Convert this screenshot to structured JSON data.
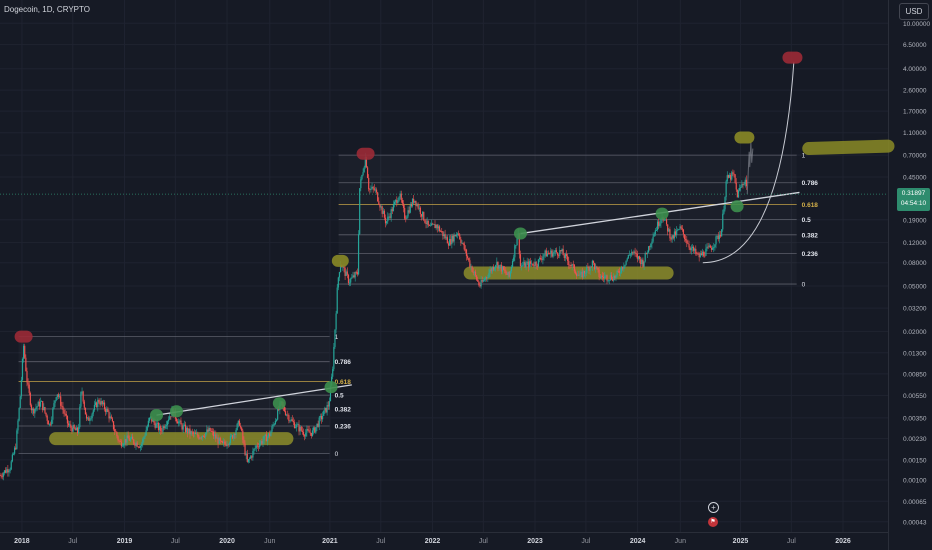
{
  "header": {
    "title": "Dogecoin, 1D, CRYPTO",
    "currency_button": "USD"
  },
  "price_tag": {
    "price": "0.31897",
    "countdown": "04:54:10"
  },
  "colors": {
    "background": "#161a25",
    "up": "#26a69a",
    "down": "#ef5350",
    "highlight_yellow": "#8a8a26",
    "highlight_green": "#3d8f4e",
    "highlight_red": "#9b2a36",
    "fib_line": "#787b86",
    "fib_618": "#d4b04a",
    "trendline": "#d1d4dc"
  },
  "icons": {
    "add": "plus-circle-icon",
    "flag": "flag-icon"
  },
  "chart_data": {
    "type": "candlestick",
    "title": "Dogecoin, 1D, CRYPTO",
    "ylabel": "USD",
    "yscale": "log",
    "ylim": [
      0.00035,
      16
    ],
    "xlim": [
      "2017-10-15",
      "2026-06-10"
    ],
    "y_ticks": [
      "10.00000",
      "6.50000",
      "4.00000",
      "2.60000",
      "1.70000",
      "1.10000",
      "0.70000",
      "0.45000",
      "0.19000",
      "0.12000",
      "0.08000",
      "0.05000",
      "0.03200",
      "0.02000",
      "0.01300",
      "0.00850",
      "0.00550",
      "0.00350",
      "0.00230",
      "0.00150",
      "0.00100",
      "0.00065",
      "0.00043"
    ],
    "x_ticks": [
      {
        "date": "2018-01-01",
        "label": "2018",
        "bold": true
      },
      {
        "date": "2018-07-01",
        "label": "Jul",
        "bold": false
      },
      {
        "date": "2019-01-01",
        "label": "2019",
        "bold": true
      },
      {
        "date": "2019-07-01",
        "label": "Jul",
        "bold": false
      },
      {
        "date": "2020-01-01",
        "label": "2020",
        "bold": true
      },
      {
        "date": "2020-06-01",
        "label": "Jun",
        "bold": false
      },
      {
        "date": "2021-01-01",
        "label": "2021",
        "bold": true
      },
      {
        "date": "2021-07-01",
        "label": "Jul",
        "bold": false
      },
      {
        "date": "2022-01-01",
        "label": "2022",
        "bold": true
      },
      {
        "date": "2022-07-01",
        "label": "Jul",
        "bold": false
      },
      {
        "date": "2023-01-01",
        "label": "2023",
        "bold": true
      },
      {
        "date": "2023-07-01",
        "label": "Jul",
        "bold": false
      },
      {
        "date": "2024-01-01",
        "label": "2024",
        "bold": true
      },
      {
        "date": "2024-06-01",
        "label": "Jun",
        "bold": false
      },
      {
        "date": "2025-01-01",
        "label": "2025",
        "bold": true
      },
      {
        "date": "2025-07-01",
        "label": "Jul",
        "bold": false
      },
      {
        "date": "2026-01-01",
        "label": "2026",
        "bold": true
      }
    ],
    "price_path": [
      [
        "2017-10-15",
        0.0011
      ],
      [
        "2017-11-20",
        0.0013
      ],
      [
        "2017-12-10",
        0.002
      ],
      [
        "2017-12-25",
        0.005
      ],
      [
        "2018-01-07",
        0.015
      ],
      [
        "2018-01-20",
        0.007
      ],
      [
        "2018-02-06",
        0.004
      ],
      [
        "2018-03-10",
        0.0048
      ],
      [
        "2018-04-10",
        0.003
      ],
      [
        "2018-05-05",
        0.006
      ],
      [
        "2018-06-15",
        0.003
      ],
      [
        "2018-07-20",
        0.0026
      ],
      [
        "2018-08-01",
        0.0065
      ],
      [
        "2018-08-20",
        0.0032
      ],
      [
        "2018-10-01",
        0.005
      ],
      [
        "2018-11-01",
        0.004
      ],
      [
        "2018-12-15",
        0.0021
      ],
      [
        "2019-01-15",
        0.0023
      ],
      [
        "2019-03-01",
        0.002
      ],
      [
        "2019-04-02",
        0.0035
      ],
      [
        "2019-05-10",
        0.0027
      ],
      [
        "2019-06-20",
        0.004
      ],
      [
        "2019-07-20",
        0.003
      ],
      [
        "2019-08-20",
        0.0026
      ],
      [
        "2019-09-20",
        0.0024
      ],
      [
        "2019-11-01",
        0.0027
      ],
      [
        "2019-12-15",
        0.002
      ],
      [
        "2020-01-15",
        0.0023
      ],
      [
        "2020-02-14",
        0.0032
      ],
      [
        "2020-03-13",
        0.0014
      ],
      [
        "2020-04-15",
        0.002
      ],
      [
        "2020-06-01",
        0.0025
      ],
      [
        "2020-07-10",
        0.0046
      ],
      [
        "2020-08-20",
        0.0032
      ],
      [
        "2020-09-30",
        0.0026
      ],
      [
        "2020-11-01",
        0.0026
      ],
      [
        "2020-12-01",
        0.0035
      ],
      [
        "2020-12-28",
        0.0046
      ],
      [
        "2021-01-10",
        0.009
      ],
      [
        "2021-01-29",
        0.055
      ],
      [
        "2021-02-07",
        0.08
      ],
      [
        "2021-03-10",
        0.055
      ],
      [
        "2021-04-10",
        0.065
      ],
      [
        "2021-04-16",
        0.35
      ],
      [
        "2021-05-08",
        0.69
      ],
      [
        "2021-05-20",
        0.35
      ],
      [
        "2021-06-10",
        0.35
      ],
      [
        "2021-07-20",
        0.18
      ],
      [
        "2021-09-05",
        0.32
      ],
      [
        "2021-09-25",
        0.2
      ],
      [
        "2021-10-28",
        0.29
      ],
      [
        "2021-12-20",
        0.16
      ],
      [
        "2022-01-15",
        0.17
      ],
      [
        "2022-03-01",
        0.12
      ],
      [
        "2022-04-01",
        0.15
      ],
      [
        "2022-05-12",
        0.08
      ],
      [
        "2022-06-18",
        0.05
      ],
      [
        "2022-08-15",
        0.08
      ],
      [
        "2022-10-01",
        0.06
      ],
      [
        "2022-11-01",
        0.15
      ],
      [
        "2022-11-10",
        0.075
      ],
      [
        "2023-01-10",
        0.08
      ],
      [
        "2023-02-01",
        0.095
      ],
      [
        "2023-04-03",
        0.1
      ],
      [
        "2023-06-10",
        0.06
      ],
      [
        "2023-07-25",
        0.08
      ],
      [
        "2023-08-20",
        0.06
      ],
      [
        "2023-10-15",
        0.06
      ],
      [
        "2023-12-10",
        0.1
      ],
      [
        "2024-01-20",
        0.08
      ],
      [
        "2024-02-25",
        0.14
      ],
      [
        "2024-03-28",
        0.21
      ],
      [
        "2024-05-01",
        0.13
      ],
      [
        "2024-06-01",
        0.16
      ],
      [
        "2024-07-05",
        0.11
      ],
      [
        "2024-08-05",
        0.09
      ],
      [
        "2024-09-20",
        0.11
      ],
      [
        "2024-10-25",
        0.15
      ],
      [
        "2024-11-12",
        0.43
      ],
      [
        "2024-12-08",
        0.47
      ],
      [
        "2024-12-20",
        0.31
      ],
      [
        "2025-01-05",
        0.38
      ],
      [
        "2025-01-18",
        0.43
      ],
      [
        "2025-01-23",
        0.35
      ],
      [
        "2025-01-25",
        0.319
      ]
    ],
    "fib_retracements": [
      {
        "x_start": "2017-12-20",
        "x_end": "2020-12-31",
        "price_0": 0.0017,
        "price_1": 0.018,
        "levels": [
          "1",
          "0.786",
          "0.618",
          "0.5",
          "0.382",
          "0.236",
          "0"
        ]
      },
      {
        "x_start": "2021-02-01",
        "x_end": "2025-07-20",
        "price_0": 0.052,
        "price_1": 0.7,
        "levels": [
          "1",
          "0.786",
          "0.618",
          "0.5",
          "0.382",
          "0.236",
          "0"
        ]
      }
    ],
    "trendlines": [
      {
        "from": [
          "2019-04-25",
          0.0037
        ],
        "to": [
          "2021-03-20",
          0.0068
        ]
      },
      {
        "from": [
          "2022-11-10",
          0.144
        ],
        "to": [
          "2025-07-30",
          0.33
        ]
      }
    ],
    "parabola": {
      "from": [
        "2024-08-20",
        0.08
      ],
      "to": [
        "2025-07-10",
        4.6
      ]
    },
    "ghost_projection": [
      [
        "2025-01-25",
        0.319
      ],
      [
        "2025-02-01",
        0.75
      ],
      [
        "2025-02-03",
        0.55
      ],
      [
        "2025-02-07",
        0.9
      ],
      [
        "2025-02-10",
        0.6
      ],
      [
        "2025-02-14",
        0.8
      ]
    ],
    "markers": [
      {
        "color": "red",
        "date": "2018-01-07",
        "price": 0.018,
        "w": 18
      },
      {
        "color": "green",
        "date": "2019-04-25",
        "price": 0.0037,
        "w": 13
      },
      {
        "color": "green",
        "date": "2019-07-05",
        "price": 0.004,
        "w": 13
      },
      {
        "color": "green",
        "date": "2020-07-05",
        "price": 0.0047,
        "w": 13
      },
      {
        "color": "green",
        "date": "2021-01-05",
        "price": 0.0065,
        "w": 13
      },
      {
        "color": "yellow",
        "date": "2021-02-07",
        "price": 0.083,
        "w": 17
      },
      {
        "color": "red",
        "date": "2021-05-08",
        "price": 0.72,
        "w": 18
      },
      {
        "color": "green",
        "date": "2022-11-10",
        "price": 0.144,
        "w": 13
      },
      {
        "color": "green",
        "date": "2024-03-28",
        "price": 0.215,
        "w": 13
      },
      {
        "color": "green",
        "date": "2024-12-20",
        "price": 0.25,
        "w": 13
      },
      {
        "color": "yellow",
        "date": "2025-01-15",
        "price": 1.0,
        "w": 20
      },
      {
        "color": "red",
        "date": "2025-07-05",
        "price": 5.0,
        "w": 20
      }
    ],
    "support_bands": [
      {
        "from": [
          "2018-05-01",
          0.0023
        ],
        "to": [
          "2020-08-01",
          0.0023
        ]
      },
      {
        "from": [
          "2022-05-15",
          0.065
        ],
        "to": [
          "2024-04-15",
          0.065
        ]
      },
      {
        "from": [
          "2025-09-01",
          0.8
        ],
        "to": [
          "2026-06-10",
          0.84
        ]
      }
    ]
  }
}
